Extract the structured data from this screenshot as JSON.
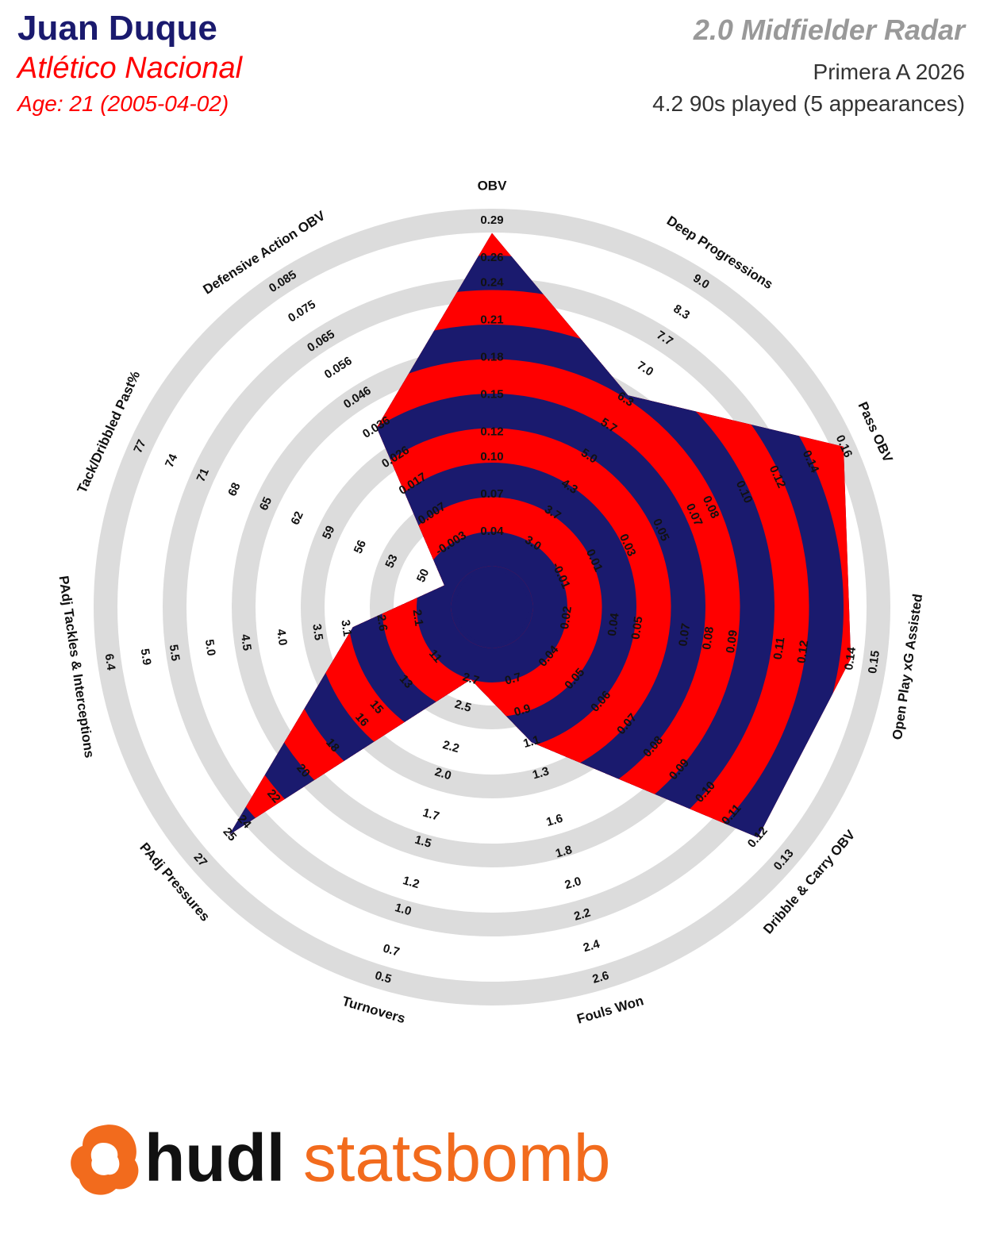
{
  "header": {
    "player": "Juan Duque",
    "team": "Atlético Nacional",
    "age": "Age: 21 (2005-04-02)",
    "radar_title": "2.0 Midfielder Radar",
    "competition": "Primera A 2026",
    "minutes": "4.2 90s played (5 appearances)"
  },
  "chart_data": {
    "type": "radar",
    "categories": [
      "OBV",
      "Deep Progressions",
      "Pass OBV",
      "Open Play xG Assisted",
      "Dribble & Carry OBV",
      "Fouls Won",
      "Turnovers",
      "PAdj Pressures",
      "PAdj Tackles & Interceptions",
      "Tack/Dribbled Past%",
      "Defensive Action OBV"
    ],
    "values": [
      0.28,
      6.4,
      0.16,
      0.14,
      0.12,
      1.1,
      2.7,
      25,
      3.0,
      48,
      0.036
    ],
    "colors": [
      "#1a1a6e",
      "#ff0000"
    ],
    "axes": [
      {
        "lim": [
          0.04,
          0.29
        ],
        "ticks": [
          0.04,
          0.07,
          {
            "value": 0.1,
            "label": "0.10"
          },
          0.12,
          0.15,
          0.18,
          0.21,
          0.24,
          0.26,
          0.29
        ]
      },
      {
        "lim": [
          3,
          9
        ],
        "ticks": [
          {
            "value": 3,
            "label": "3.0"
          },
          3.7,
          4.3,
          {
            "value": 5,
            "label": "5.0"
          },
          5.7,
          6.3,
          {
            "value": 7,
            "label": "7.0"
          },
          7.7,
          8.3,
          {
            "value": 9,
            "label": "9.0"
          }
        ]
      },
      {
        "lim": [
          -0.01,
          0.16
        ],
        "ticks": [
          -0.01,
          0.01,
          0.03,
          0.05,
          0.07,
          0.08,
          {
            "value": 0.1,
            "label": "0.10"
          },
          0.12,
          0.14,
          0.16
        ]
      },
      {
        "lim": [
          0.02,
          0.15
        ],
        "ticks": [
          0.02,
          0.04,
          0.05,
          0.07,
          0.08,
          0.09,
          0.11,
          0.12,
          0.14,
          0.15
        ]
      },
      {
        "lim": [
          0.04,
          0.13
        ],
        "ticks": [
          0.04,
          0.05,
          0.06,
          0.07,
          0.08,
          0.09,
          {
            "value": 0.1,
            "label": "0.10"
          },
          0.11,
          0.12,
          0.13
        ]
      },
      {
        "lim": [
          0.7,
          2.6
        ],
        "ticks": [
          0.7,
          0.9,
          1.1,
          1.3,
          1.6,
          1.8,
          {
            "value": 2,
            "label": "2.0"
          },
          2.2,
          2.4,
          2.6
        ]
      },
      {
        "lim": [
          2.7,
          0.5
        ],
        "ticks": [
          2.7,
          2.5,
          2.2,
          {
            "value": 2,
            "label": "2.0"
          },
          1.7,
          1.5,
          1.2,
          {
            "value": 1,
            "label": "1.0"
          },
          0.7,
          0.5
        ]
      },
      {
        "lim": [
          11,
          27
        ],
        "ticks": [
          11,
          13,
          15,
          16,
          18,
          20,
          22,
          24,
          25,
          27
        ]
      },
      {
        "lim": [
          2.1,
          6.4
        ],
        "ticks": [
          2.1,
          2.6,
          3.1,
          3.5,
          {
            "value": 4,
            "label": "4.0"
          },
          4.5,
          {
            "value": 5,
            "label": "5.0"
          },
          5.5,
          5.9,
          6.4
        ]
      },
      {
        "lim": [
          50,
          77
        ],
        "ticks": [
          50,
          53,
          56,
          59,
          62,
          65,
          68,
          71,
          74,
          77
        ]
      },
      {
        "lim": [
          -0.003,
          0.085
        ],
        "ticks": [
          -0.003,
          0.007,
          0.017,
          0.026,
          0.036,
          0.046,
          0.056,
          0.065,
          0.075,
          0.085
        ]
      }
    ]
  },
  "logo": {
    "hudl": "hudl",
    "statsbomb": "statsbomb"
  }
}
